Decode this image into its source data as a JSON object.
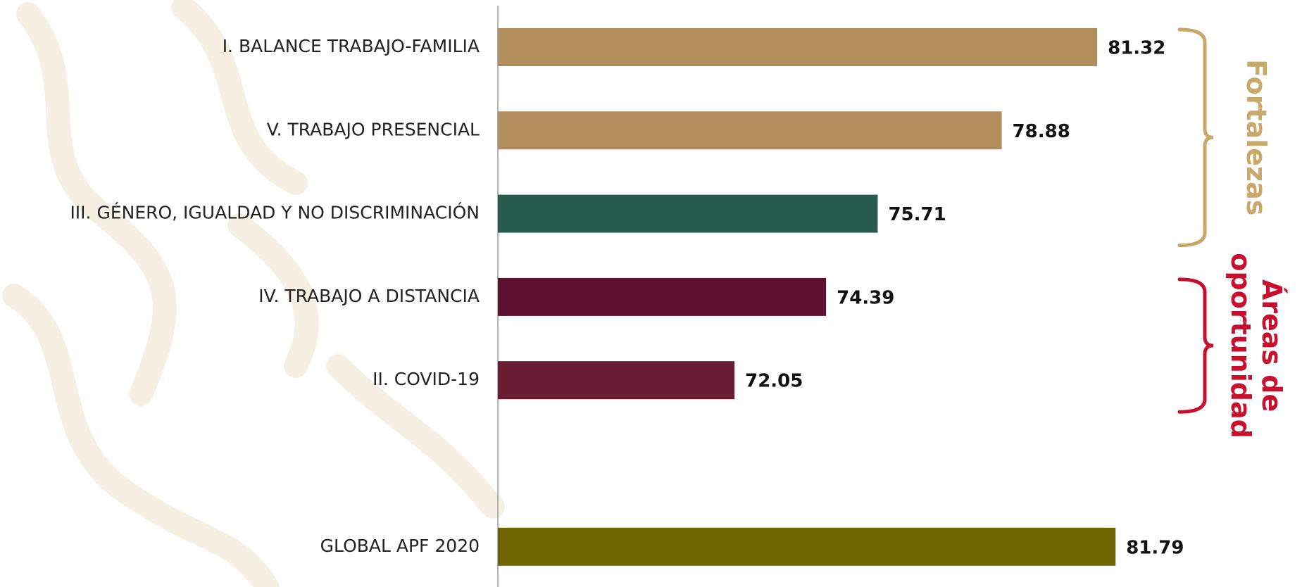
{
  "chart_data": {
    "type": "hbar",
    "categories": [
      "I. BALANCE TRABAJO-FAMILIA",
      "V. TRABAJO PRESENCIAL",
      "III. GÉNERO, IGUALDAD Y NO DISCRIMINACIÓN",
      "IV. TRABAJO A DISTANCIA",
      "II. COVID-19",
      null,
      "GLOBAL APF 2020"
    ],
    "values": [
      81.32,
      78.88,
      75.71,
      74.39,
      72.05,
      null,
      81.79
    ],
    "colors": [
      "#b28e5c",
      "#b28e5c",
      "#285c4d",
      "#5e1230",
      "#6a1c32",
      null,
      "#6f6500"
    ],
    "xlim": [
      66,
      84
    ],
    "annotations": [
      {
        "lines": [
          "Fortalezas"
        ],
        "color": "#c9a96a",
        "from": 0,
        "to": 2
      },
      {
        "lines": [
          "Áreas de",
          "oportunidad"
        ],
        "color": "#c8102e",
        "from": 3,
        "to": 4
      }
    ]
  }
}
